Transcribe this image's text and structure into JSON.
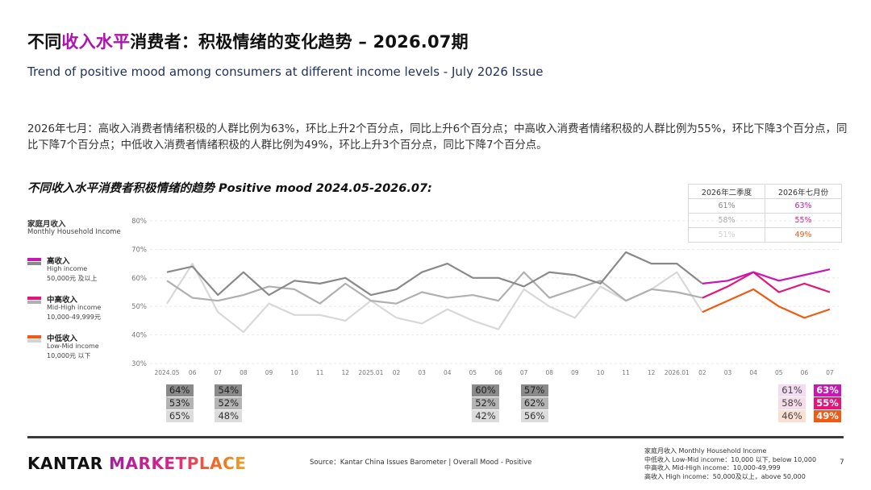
{
  "header": {
    "title_pre": "不同",
    "title_highlight": "收入水平",
    "title_post": "消费者：积极情绪的变化趋势 – 2026.07期",
    "subtitle": "Trend of positive mood among consumers at different income levels - July 2026 Issue",
    "summary": "2026年七月：高收入消费者情绪积极的人群比例为63%，环比上升2个百分点，同比上升6个百分点；中高收入消费者情绪积极的人群比例为55%，环比下降3个百分点，同比下降7个百分点；中低收入消费者情绪积极的人群比例为49%，环比上升3个百分点，同比下降7个百分点。"
  },
  "chart_title": "不同收入水平消费者积极情绪的趋势 Positive mood 2024.05-2026.07:",
  "legend": {
    "head_cn": "家庭月收入",
    "head_en": "Monthly Household Income",
    "items": [
      {
        "cn": "高收入",
        "en": "High income",
        "range": "50,000元 及以上",
        "color": "#c817b4",
        "color2": "#8a8a8a"
      },
      {
        "cn": "中高收入",
        "en": "Mid-High income",
        "range": "10,000-49,999元",
        "color": "#e5147a",
        "color2": "#b0b0b0"
      },
      {
        "cn": "中低收入",
        "en": "Low-Mid income",
        "range": "10,000元 以下",
        "color": "#f05a14",
        "color2": "#d3d3d3"
      }
    ]
  },
  "quarter_table": {
    "headers": [
      "2026年二季度",
      "2026年七月份"
    ],
    "rows": [
      {
        "q2": "61%",
        "jul": "63%",
        "q2_color": "#8a8a8a",
        "jul_color": "#c817b4"
      },
      {
        "q2": "58%",
        "jul": "55%",
        "q2_color": "#a8a8a8",
        "jul_color": "#e5147a"
      },
      {
        "q2": "51%",
        "jul": "49%",
        "q2_color": "#d0d0d0",
        "jul_color": "#f05a14"
      }
    ]
  },
  "chart_data": {
    "type": "line",
    "x": [
      "2024.05",
      "06",
      "07",
      "08",
      "09",
      "10",
      "11",
      "12",
      "2025.01",
      "02",
      "03",
      "04",
      "05",
      "06",
      "07",
      "08",
      "09",
      "10",
      "11",
      "12",
      "2026.01",
      "02",
      "03",
      "04",
      "05",
      "06",
      "07"
    ],
    "y_ticks": [
      "80%",
      "70%",
      "60%",
      "50%",
      "40%",
      "30%"
    ],
    "ylim": [
      30,
      80
    ],
    "highlight_from_index": 21,
    "series": [
      {
        "name": "高收入",
        "color": "#8a8a8a",
        "highlight_color": "#c817b4",
        "values": [
          62,
          64,
          54,
          62,
          54,
          59,
          58,
          60,
          54,
          56,
          62,
          65,
          60,
          60,
          57,
          62,
          61,
          58,
          69,
          65,
          65,
          58,
          59,
          62,
          59,
          61,
          63
        ]
      },
      {
        "name": "中高收入",
        "color": "#b0b0b0",
        "highlight_color": "#e5147a",
        "values": [
          59,
          53,
          52,
          54,
          57,
          56,
          51,
          58,
          52,
          51,
          55,
          53,
          54,
          52,
          62,
          53,
          56,
          59,
          52,
          56,
          55,
          53,
          57,
          62,
          55,
          58,
          55
        ]
      },
      {
        "name": "中低收入",
        "color": "#d8d8d8",
        "highlight_color": "#f05a14",
        "values": [
          51,
          65,
          48,
          41,
          51,
          47,
          47,
          45,
          52,
          46,
          44,
          49,
          45,
          42,
          56,
          50,
          46,
          57,
          52,
          56,
          62,
          48,
          52,
          56,
          50,
          46,
          49
        ]
      }
    ],
    "value_boxes": [
      {
        "index": 1,
        "values": [
          "64%",
          "53%",
          "65%"
        ]
      },
      {
        "index": 2,
        "values": [
          "54%",
          "52%",
          "48%"
        ]
      },
      {
        "index": 13,
        "values": [
          "60%",
          "52%",
          "42%"
        ]
      },
      {
        "index": 14,
        "values": [
          "57%",
          "62%",
          "56%"
        ]
      },
      {
        "index": 25,
        "values": [
          "61%",
          "58%",
          "46%"
        ]
      },
      {
        "index": 26,
        "values": [
          "63%",
          "55%",
          "49%"
        ]
      }
    ]
  },
  "footer": {
    "logo_a": "KANTAR",
    "logo_b": "MARKETPLACE",
    "source": "Source：Kantar China Issues Barometer | Overall Mood - Positive",
    "notes": [
      "家庭月收入 Monthly Household Income",
      "中低收入 Low-Mid income：10,000 以下, below 10,000",
      "中高收入 Mid-High income：10,000-49,999",
      "高收入 High income：50,000及以上，above 50,000"
    ],
    "page": "7"
  }
}
